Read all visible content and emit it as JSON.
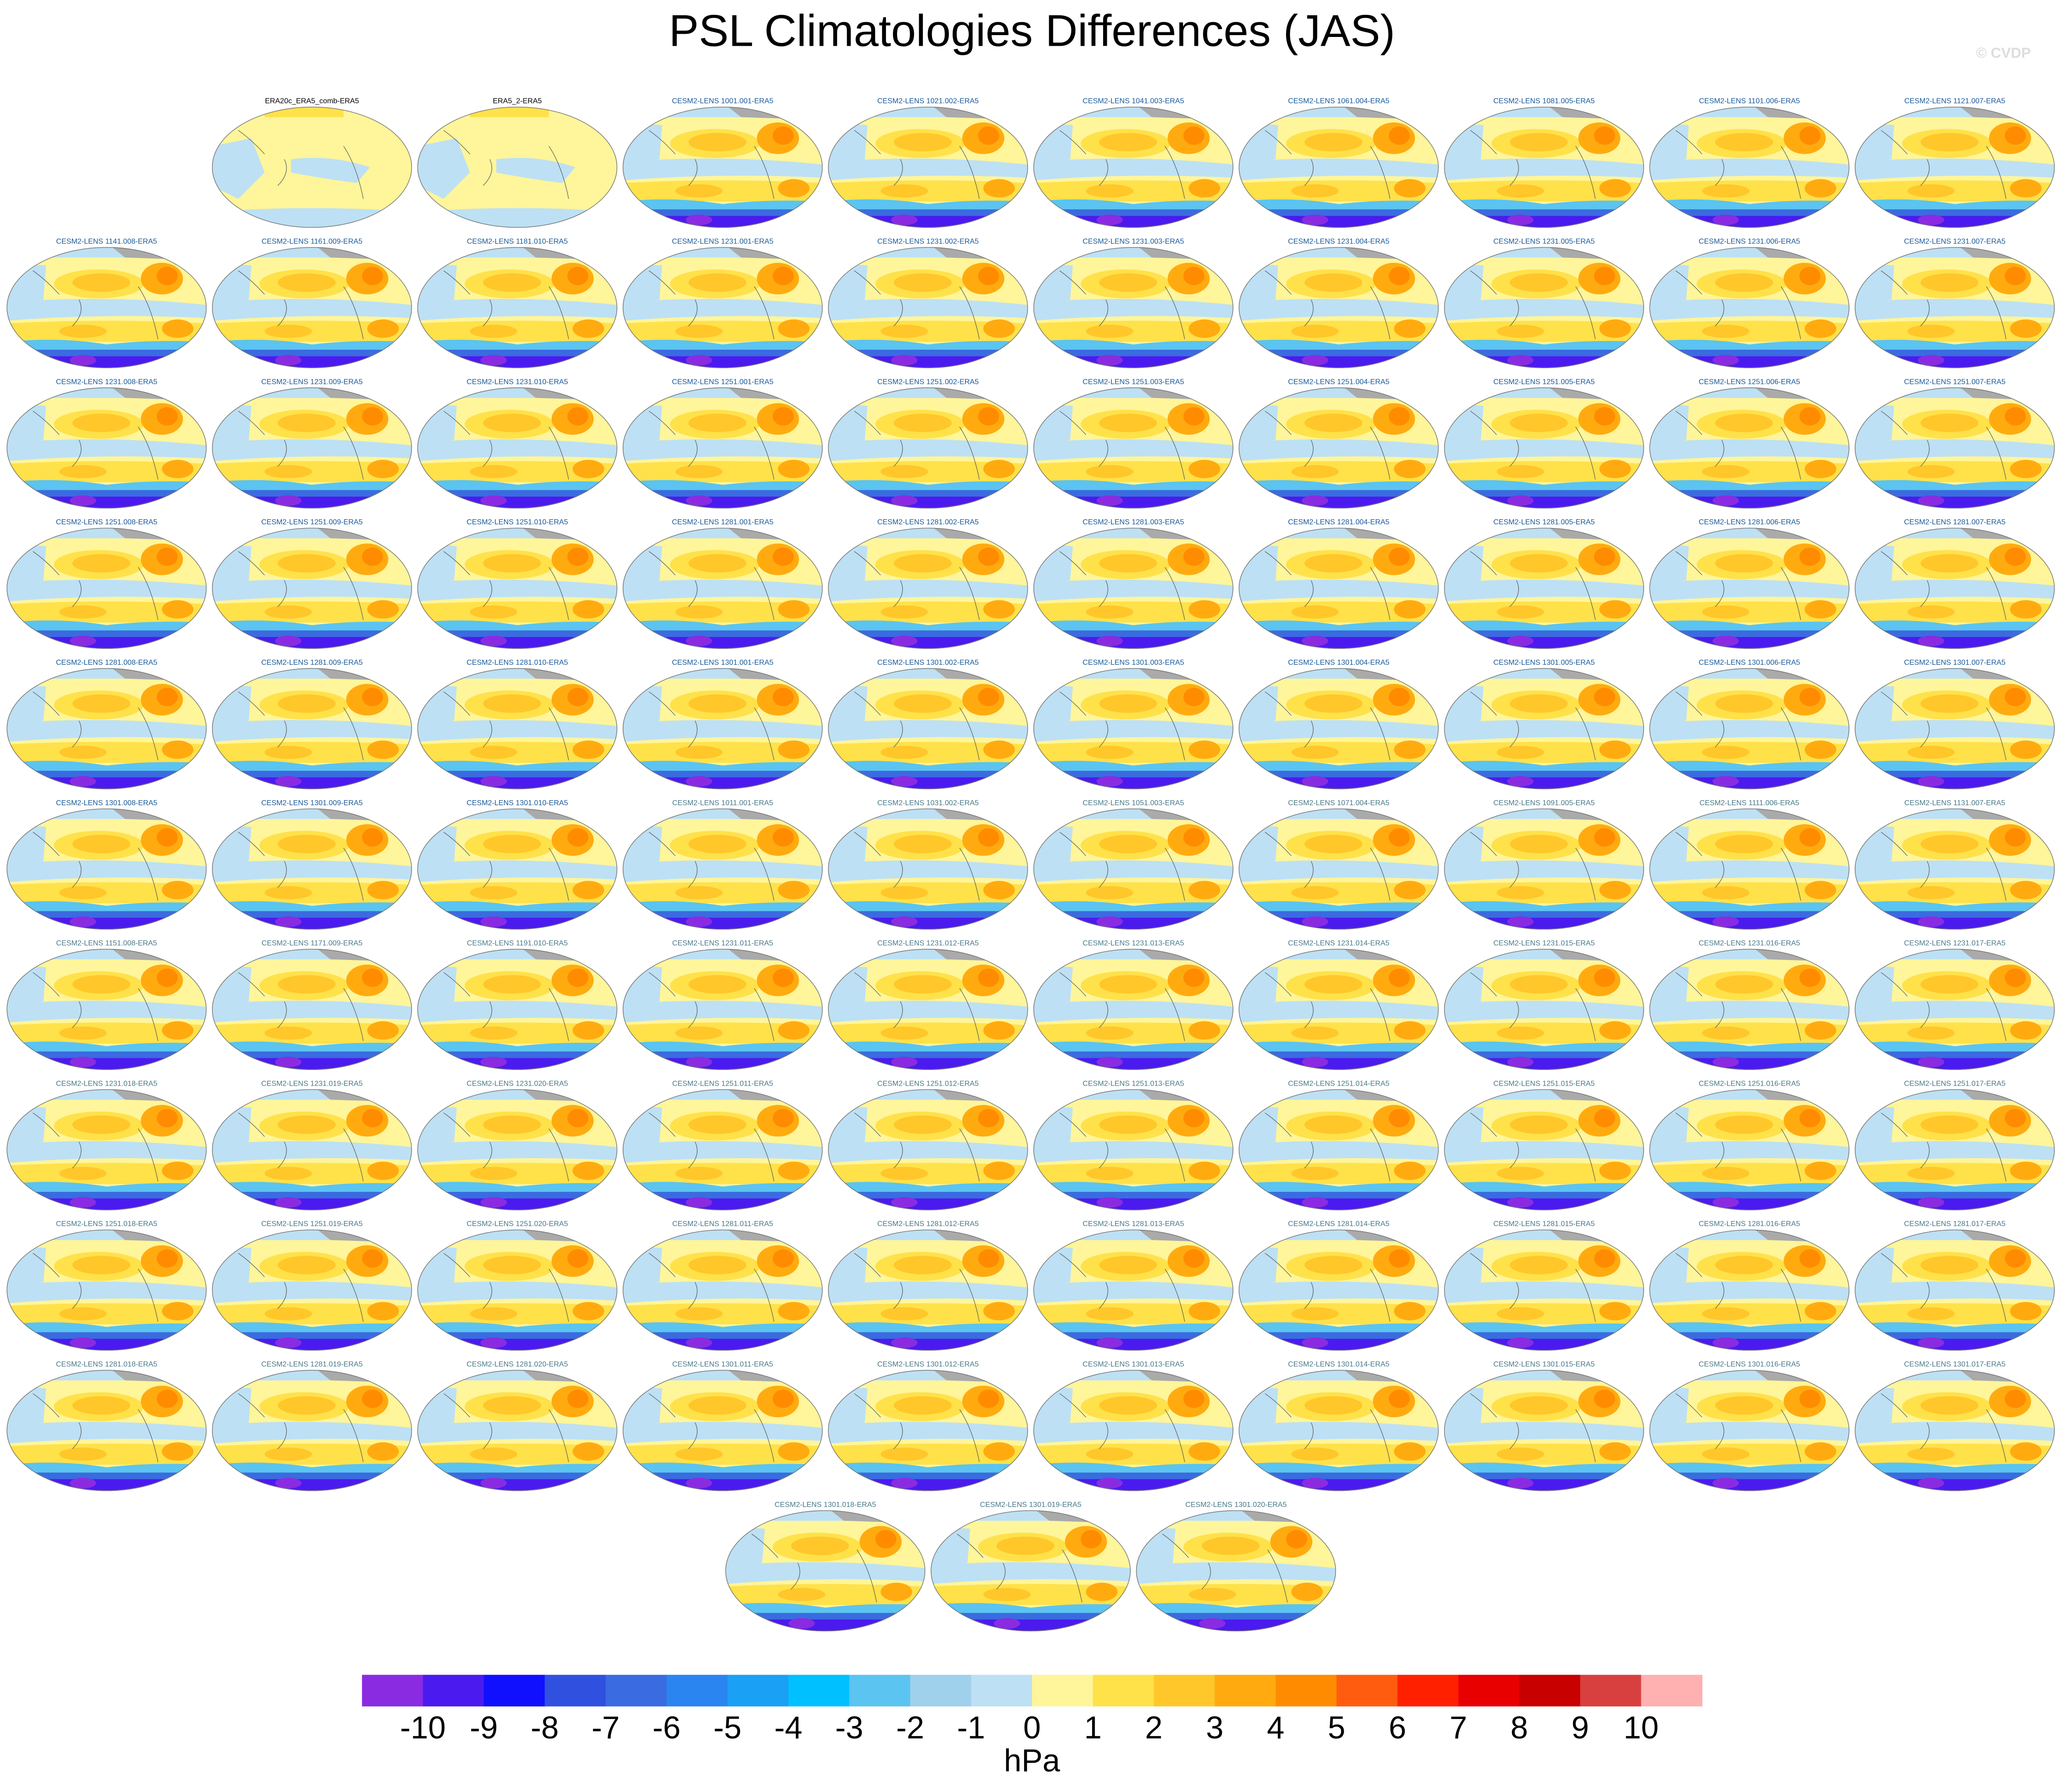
{
  "title": "PSL Climatologies Differences (JAS)",
  "watermark": "© CVDP",
  "panels": [
    [
      "ERA20c_ERA5_comb-ERA5",
      "ERA5_2-ERA5",
      "CESM2-LENS 1001.001-ERA5",
      "CESM2-LENS 1021.002-ERA5",
      "CESM2-LENS 1041.003-ERA5",
      "CESM2-LENS 1061.004-ERA5",
      "CESM2-LENS 1081.005-ERA5",
      "CESM2-LENS 1101.006-ERA5",
      "CESM2-LENS 1121.007-ERA5"
    ],
    [
      "CESM2-LENS 1141.008-ERA5",
      "CESM2-LENS 1161.009-ERA5",
      "CESM2-LENS 1181.010-ERA5",
      "CESM2-LENS 1231.001-ERA5",
      "CESM2-LENS 1231.002-ERA5",
      "CESM2-LENS 1231.003-ERA5",
      "CESM2-LENS 1231.004-ERA5",
      "CESM2-LENS 1231.005-ERA5",
      "CESM2-LENS 1231.006-ERA5",
      "CESM2-LENS 1231.007-ERA5"
    ],
    [
      "CESM2-LENS 1231.008-ERA5",
      "CESM2-LENS 1231.009-ERA5",
      "CESM2-LENS 1231.010-ERA5",
      "CESM2-LENS 1251.001-ERA5",
      "CESM2-LENS 1251.002-ERA5",
      "CESM2-LENS 1251.003-ERA5",
      "CESM2-LENS 1251.004-ERA5",
      "CESM2-LENS 1251.005-ERA5",
      "CESM2-LENS 1251.006-ERA5",
      "CESM2-LENS 1251.007-ERA5"
    ],
    [
      "CESM2-LENS 1251.008-ERA5",
      "CESM2-LENS 1251.009-ERA5",
      "CESM2-LENS 1251.010-ERA5",
      "CESM2-LENS 1281.001-ERA5",
      "CESM2-LENS 1281.002-ERA5",
      "CESM2-LENS 1281.003-ERA5",
      "CESM2-LENS 1281.004-ERA5",
      "CESM2-LENS 1281.005-ERA5",
      "CESM2-LENS 1281.006-ERA5",
      "CESM2-LENS 1281.007-ERA5"
    ],
    [
      "CESM2-LENS 1281.008-ERA5",
      "CESM2-LENS 1281.009-ERA5",
      "CESM2-LENS 1281.010-ERA5",
      "CESM2-LENS 1301.001-ERA5",
      "CESM2-LENS 1301.002-ERA5",
      "CESM2-LENS 1301.003-ERA5",
      "CESM2-LENS 1301.004-ERA5",
      "CESM2-LENS 1301.005-ERA5",
      "CESM2-LENS 1301.006-ERA5",
      "CESM2-LENS 1301.007-ERA5"
    ],
    [
      "CESM2-LENS 1301.008-ERA5",
      "CESM2-LENS 1301.009-ERA5",
      "CESM2-LENS 1301.010-ERA5",
      "CESM2-LENS 1011.001-ERA5",
      "CESM2-LENS 1031.002-ERA5",
      "CESM2-LENS 1051.003-ERA5",
      "CESM2-LENS 1071.004-ERA5",
      "CESM2-LENS 1091.005-ERA5",
      "CESM2-LENS 1111.006-ERA5",
      "CESM2-LENS 1131.007-ERA5"
    ],
    [
      "CESM2-LENS 1151.008-ERA5",
      "CESM2-LENS 1171.009-ERA5",
      "CESM2-LENS 1191.010-ERA5",
      "CESM2-LENS 1231.011-ERA5",
      "CESM2-LENS 1231.012-ERA5",
      "CESM2-LENS 1231.013-ERA5",
      "CESM2-LENS 1231.014-ERA5",
      "CESM2-LENS 1231.015-ERA5",
      "CESM2-LENS 1231.016-ERA5",
      "CESM2-LENS 1231.017-ERA5"
    ],
    [
      "CESM2-LENS 1231.018-ERA5",
      "CESM2-LENS 1231.019-ERA5",
      "CESM2-LENS 1231.020-ERA5",
      "CESM2-LENS 1251.011-ERA5",
      "CESM2-LENS 1251.012-ERA5",
      "CESM2-LENS 1251.013-ERA5",
      "CESM2-LENS 1251.014-ERA5",
      "CESM2-LENS 1251.015-ERA5",
      "CESM2-LENS 1251.016-ERA5",
      "CESM2-LENS 1251.017-ERA5"
    ],
    [
      "CESM2-LENS 1251.018-ERA5",
      "CESM2-LENS 1251.019-ERA5",
      "CESM2-LENS 1251.020-ERA5",
      "CESM2-LENS 1281.011-ERA5",
      "CESM2-LENS 1281.012-ERA5",
      "CESM2-LENS 1281.013-ERA5",
      "CESM2-LENS 1281.014-ERA5",
      "CESM2-LENS 1281.015-ERA5",
      "CESM2-LENS 1281.016-ERA5",
      "CESM2-LENS 1281.017-ERA5"
    ],
    [
      "CESM2-LENS 1281.018-ERA5",
      "CESM2-LENS 1281.019-ERA5",
      "CESM2-LENS 1281.020-ERA5",
      "CESM2-LENS 1301.011-ERA5",
      "CESM2-LENS 1301.012-ERA5",
      "CESM2-LENS 1301.013-ERA5",
      "CESM2-LENS 1301.014-ERA5",
      "CESM2-LENS 1301.015-ERA5",
      "CESM2-LENS 1301.016-ERA5",
      "CESM2-LENS 1301.017-ERA5"
    ],
    [
      "CESM2-LENS 1301.018-ERA5",
      "CESM2-LENS 1301.019-ERA5",
      "CESM2-LENS 1301.020-ERA5"
    ]
  ],
  "colorbar": {
    "colors": [
      "#8a2be2",
      "#4b1aef",
      "#1010ff",
      "#3050e0",
      "#3a6be0",
      "#2a85f0",
      "#1aa0f5",
      "#00c0ff",
      "#5bc4f0",
      "#9fd0ec",
      "#bde0f4",
      "#fff59a",
      "#ffe14a",
      "#ffc72a",
      "#ffab10",
      "#ff8c00",
      "#ff5c10",
      "#ff2000",
      "#e80000",
      "#c80000",
      "#d84040",
      "#ffb0b0"
    ],
    "ticks": [
      -10,
      -9,
      -8,
      -7,
      -6,
      -5,
      -4,
      -3,
      -2,
      -1,
      0,
      1,
      2,
      3,
      4,
      5,
      6,
      7,
      8,
      9,
      10
    ],
    "label": "hPa"
  }
}
